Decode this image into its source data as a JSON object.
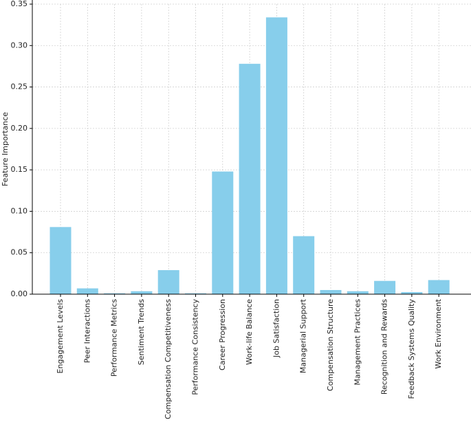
{
  "chart_data": {
    "type": "bar",
    "y_label": "Feature Importance",
    "categories": [
      "Engagement Levels",
      "Peer Interactions",
      "Performance Metrics",
      "Sentiment Trends",
      "Compensation Competitiveness",
      "Performance Consistency",
      "Career Progression",
      "Work-life Balance",
      "Job Satisfaction",
      "Managerial Support",
      "Compensation Structure",
      "Management Practices",
      "Recognition and Rewards",
      "Feedback Systems Quality",
      "Work Environment"
    ],
    "values": [
      0.081,
      0.007,
      0.001,
      0.0035,
      0.029,
      0.001,
      0.148,
      0.278,
      0.334,
      0.07,
      0.005,
      0.0035,
      0.016,
      0.0025,
      0.017
    ],
    "color": "#87ceeb",
    "ylim": [
      0,
      0.35
    ],
    "yticks": [
      {
        "value": 0,
        "label": "0.00"
      },
      {
        "value": 0.05,
        "label": "0.05"
      },
      {
        "value": 0.1,
        "label": "0.10"
      },
      {
        "value": 0.15,
        "label": "0.15"
      },
      {
        "value": 0.2,
        "label": "0.20"
      },
      {
        "value": 0.25,
        "label": "0.25"
      },
      {
        "value": 0.3,
        "label": "0.30"
      },
      {
        "value": 0.35,
        "label": "0.35"
      }
    ],
    "grid": true
  }
}
